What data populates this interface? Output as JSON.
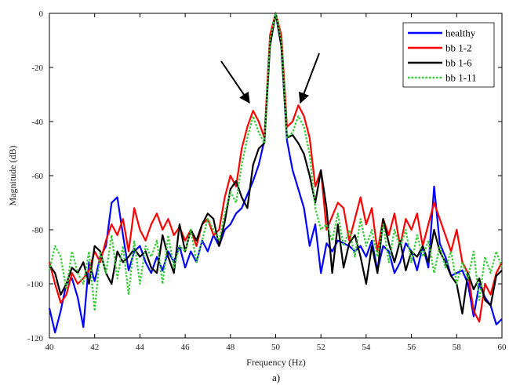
{
  "chart_data": {
    "type": "line",
    "title": "",
    "xlabel": "Frequency (Hz)",
    "ylabel": "Magnitude (dB)",
    "caption": "a)",
    "xlim": [
      40,
      60
    ],
    "ylim": [
      -120,
      0
    ],
    "xticks": [
      40,
      42,
      44,
      46,
      48,
      50,
      52,
      54,
      56,
      58,
      60
    ],
    "yticks": [
      0,
      -20,
      -40,
      -60,
      -80,
      -100,
      -120
    ],
    "legend_position": "top-right",
    "grid": false,
    "annotations": [
      "arrow pointing to left sideband peak near 49 Hz",
      "arrow pointing to right sideband peak near 51 Hz"
    ],
    "series": [
      {
        "name": "healthy",
        "color": "#0000ff",
        "dash": "solid",
        "x": [
          40.0,
          40.25,
          40.5,
          40.75,
          41.0,
          41.25,
          41.5,
          41.75,
          42.0,
          42.25,
          42.5,
          42.75,
          43.0,
          43.25,
          43.5,
          43.75,
          44.0,
          44.25,
          44.5,
          44.75,
          45.0,
          45.25,
          45.5,
          45.75,
          46.0,
          46.25,
          46.5,
          46.75,
          47.0,
          47.25,
          47.5,
          47.75,
          48.0,
          48.25,
          48.5,
          48.75,
          49.0,
          49.25,
          49.5,
          49.75,
          50.0,
          50.25,
          50.5,
          50.75,
          51.0,
          51.25,
          51.5,
          51.75,
          52.0,
          52.25,
          52.5,
          52.75,
          53.0,
          53.25,
          53.5,
          53.75,
          54.0,
          54.25,
          54.5,
          54.75,
          55.0,
          55.25,
          55.5,
          55.75,
          56.0,
          56.25,
          56.5,
          56.75,
          57.0,
          57.25,
          57.5,
          57.75,
          58.0,
          58.25,
          58.5,
          58.75,
          59.0,
          59.25,
          59.5,
          59.75,
          60.0
        ],
        "y": [
          -109,
          -118,
          -110,
          -100,
          -98,
          -105,
          -116,
          -92,
          -99,
          -90,
          -86,
          -70,
          -68,
          -82,
          -95,
          -88,
          -86,
          -92,
          -96,
          -90,
          -95,
          -88,
          -92,
          -86,
          -94,
          -88,
          -92,
          -84,
          -88,
          -82,
          -86,
          -80,
          -78,
          -74,
          -72,
          -67,
          -62,
          -56,
          -47,
          -10,
          0,
          -12,
          -47,
          -58,
          -65,
          -72,
          -86,
          -78,
          -96,
          -85,
          -88,
          -84,
          -85,
          -86,
          -88,
          -86,
          -90,
          -84,
          -95,
          -86,
          -88,
          -96,
          -92,
          -85,
          -88,
          -95,
          -86,
          -94,
          -64,
          -85,
          -90,
          -97,
          -96,
          -95,
          -100,
          -112,
          -100,
          -105,
          -108,
          -115,
          -113
        ]
      },
      {
        "name": "bb 1-2",
        "color": "#ff0000",
        "dash": "solid",
        "x": [
          40.0,
          40.25,
          40.5,
          40.75,
          41.0,
          41.25,
          41.5,
          41.75,
          42.0,
          42.25,
          42.5,
          42.75,
          43.0,
          43.25,
          43.5,
          43.75,
          44.0,
          44.25,
          44.5,
          44.75,
          45.0,
          45.25,
          45.5,
          45.75,
          46.0,
          46.25,
          46.5,
          46.75,
          47.0,
          47.25,
          47.5,
          47.75,
          48.0,
          48.25,
          48.5,
          48.75,
          49.0,
          49.25,
          49.5,
          49.75,
          50.0,
          50.25,
          50.5,
          50.75,
          51.0,
          51.25,
          51.5,
          51.75,
          52.0,
          52.25,
          52.5,
          52.75,
          53.0,
          53.25,
          53.5,
          53.75,
          54.0,
          54.25,
          54.5,
          54.75,
          55.0,
          55.25,
          55.5,
          55.75,
          56.0,
          56.25,
          56.5,
          56.75,
          57.0,
          57.25,
          57.5,
          57.75,
          58.0,
          58.25,
          58.5,
          58.75,
          59.0,
          59.25,
          59.5,
          59.75,
          60.0
        ],
        "y": [
          -92,
          -100,
          -107,
          -104,
          -96,
          -100,
          -98,
          -95,
          -88,
          -92,
          -84,
          -78,
          -82,
          -76,
          -88,
          -72,
          -80,
          -84,
          -78,
          -74,
          -80,
          -76,
          -82,
          -79,
          -84,
          -80,
          -86,
          -78,
          -76,
          -82,
          -80,
          -68,
          -60,
          -64,
          -50,
          -42,
          -36,
          -40,
          -46,
          -8,
          0,
          -8,
          -42,
          -40,
          -34,
          -38,
          -46,
          -64,
          -58,
          -80,
          -75,
          -70,
          -72,
          -84,
          -76,
          -68,
          -78,
          -72,
          -88,
          -76,
          -82,
          -74,
          -86,
          -76,
          -80,
          -74,
          -86,
          -78,
          -70,
          -76,
          -82,
          -88,
          -80,
          -92,
          -96,
          -110,
          -114,
          -100,
          -104,
          -96,
          -92
        ]
      },
      {
        "name": "bb 1-6",
        "color": "#000000",
        "dash": "solid",
        "x": [
          40.0,
          40.25,
          40.5,
          40.75,
          41.0,
          41.25,
          41.5,
          41.75,
          42.0,
          42.25,
          42.5,
          42.75,
          43.0,
          43.25,
          43.5,
          43.75,
          44.0,
          44.25,
          44.5,
          44.75,
          45.0,
          45.25,
          45.5,
          45.75,
          46.0,
          46.25,
          46.5,
          46.75,
          47.0,
          47.25,
          47.5,
          47.75,
          48.0,
          48.25,
          48.5,
          48.75,
          49.0,
          49.25,
          49.5,
          49.75,
          50.0,
          50.25,
          50.5,
          50.75,
          51.0,
          51.25,
          51.5,
          51.75,
          52.0,
          52.25,
          52.5,
          52.75,
          53.0,
          53.25,
          53.5,
          53.75,
          54.0,
          54.25,
          54.5,
          54.75,
          55.0,
          55.25,
          55.5,
          55.75,
          56.0,
          56.25,
          56.5,
          56.75,
          57.0,
          57.25,
          57.5,
          57.75,
          58.0,
          58.25,
          58.5,
          58.75,
          59.0,
          59.25,
          59.5,
          59.75,
          60.0
        ],
        "y": [
          -93,
          -96,
          -104,
          -100,
          -94,
          -96,
          -92,
          -100,
          -86,
          -88,
          -96,
          -100,
          -88,
          -92,
          -90,
          -87,
          -90,
          -88,
          -94,
          -96,
          -82,
          -90,
          -96,
          -78,
          -88,
          -80,
          -84,
          -78,
          -74,
          -76,
          -86,
          -77,
          -65,
          -62,
          -68,
          -72,
          -56,
          -50,
          -48,
          -12,
          0,
          -12,
          -46,
          -45,
          -48,
          -52,
          -60,
          -70,
          -58,
          -72,
          -96,
          -78,
          -94,
          -85,
          -82,
          -90,
          -100,
          -86,
          -96,
          -76,
          -85,
          -92,
          -84,
          -95,
          -88,
          -90,
          -86,
          -92,
          -80,
          -88,
          -92,
          -97,
          -100,
          -111,
          -96,
          -102,
          -98,
          -106,
          -108,
          -97,
          -95
        ]
      },
      {
        "name": "bb 1-11",
        "color": "#33cc33",
        "dash": "dotted",
        "x": [
          40.0,
          40.25,
          40.5,
          40.75,
          41.0,
          41.25,
          41.5,
          41.75,
          42.0,
          42.25,
          42.5,
          42.75,
          43.0,
          43.25,
          43.5,
          43.75,
          44.0,
          44.25,
          44.5,
          44.75,
          45.0,
          45.25,
          45.5,
          45.75,
          46.0,
          46.25,
          46.5,
          46.75,
          47.0,
          47.25,
          47.5,
          47.75,
          48.0,
          48.25,
          48.5,
          48.75,
          49.0,
          49.25,
          49.5,
          49.75,
          50.0,
          50.25,
          50.5,
          50.75,
          51.0,
          51.25,
          51.5,
          51.75,
          52.0,
          52.25,
          52.5,
          52.75,
          53.0,
          53.25,
          53.5,
          53.75,
          54.0,
          54.25,
          54.5,
          54.75,
          55.0,
          55.25,
          55.5,
          55.75,
          56.0,
          56.25,
          56.5,
          56.75,
          57.0,
          57.25,
          57.5,
          57.75,
          58.0,
          58.25,
          58.5,
          58.75,
          59.0,
          59.25,
          59.5,
          59.75,
          60.0
        ],
        "y": [
          -95,
          -86,
          -90,
          -102,
          -88,
          -96,
          -100,
          -88,
          -110,
          -88,
          -96,
          -82,
          -98,
          -86,
          -104,
          -84,
          -100,
          -86,
          -90,
          -84,
          -100,
          -82,
          -94,
          -86,
          -88,
          -80,
          -92,
          -84,
          -76,
          -80,
          -84,
          -74,
          -66,
          -70,
          -56,
          -46,
          -38,
          -44,
          -48,
          -10,
          0,
          -10,
          -46,
          -44,
          -38,
          -42,
          -52,
          -72,
          -80,
          -78,
          -84,
          -74,
          -86,
          -80,
          -90,
          -76,
          -86,
          -80,
          -90,
          -78,
          -92,
          -80,
          -86,
          -80,
          -92,
          -82,
          -90,
          -84,
          -96,
          -86,
          -94,
          -88,
          -100,
          -92,
          -98,
          -88,
          -106,
          -90,
          -96,
          -88,
          -94
        ]
      }
    ]
  }
}
